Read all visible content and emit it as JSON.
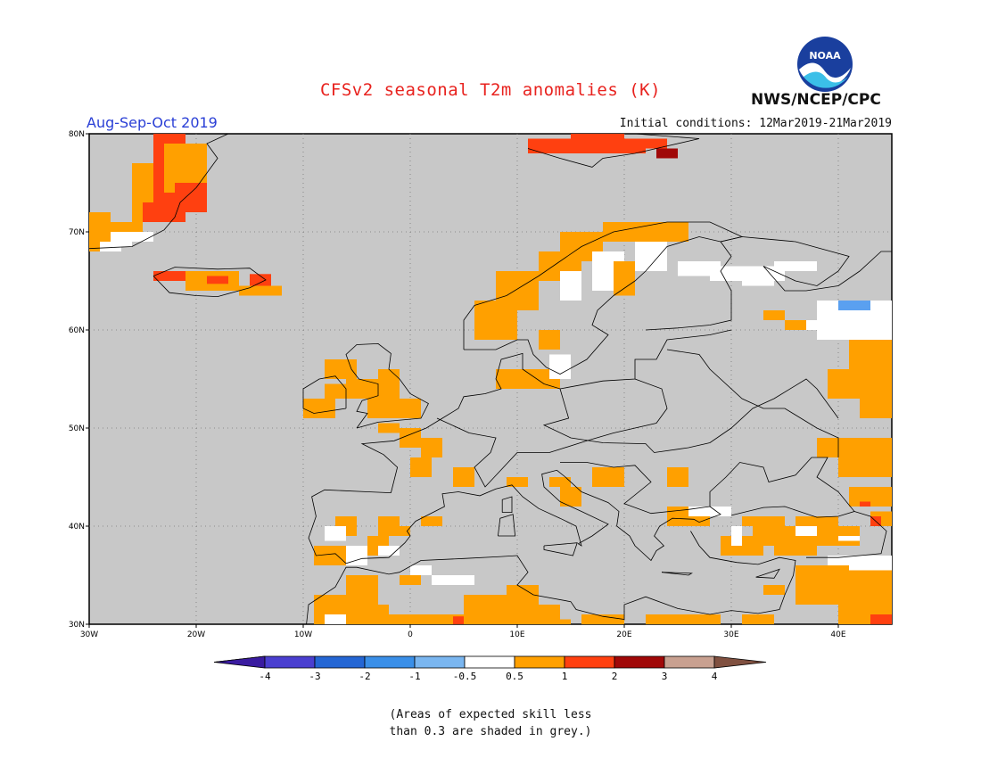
{
  "header": {
    "title": "CFSv2 seasonal T2m anomalies (K)",
    "period": "Aug-Sep-Oct 2019",
    "initial_conditions": "Initial conditions: 12Mar2019-21Mar2019",
    "agency": "NWS/NCEP/CPC",
    "logo_text": "NOAA"
  },
  "map": {
    "lon_range": [
      -30,
      45
    ],
    "lat_range": [
      30,
      80
    ],
    "lon_ticks": [
      "30W",
      "20W",
      "10W",
      "0",
      "10E",
      "20E",
      "30E",
      "40E"
    ],
    "lat_ticks": [
      "80N",
      "70N",
      "60N",
      "50N",
      "40N",
      "30N"
    ],
    "land_color": "#c8c8c8",
    "ocean_color": "#c8c8c8"
  },
  "legend": {
    "labels": [
      "-4",
      "-3",
      "-2",
      "-1",
      "-0.5",
      "0.5",
      "1",
      "2",
      "3",
      "4"
    ],
    "colors": [
      "#3a1ba0",
      "#4a3fd0",
      "#2466d4",
      "#3a8fe8",
      "#7ab6f0",
      "#ffffff",
      "#ffa000",
      "#ff4010",
      "#a00808",
      "#c8a090",
      "#805040"
    ]
  },
  "footnote": {
    "line1": "(Areas of expected skill less",
    "line2": "than 0.3 are shaded in grey.)"
  }
}
